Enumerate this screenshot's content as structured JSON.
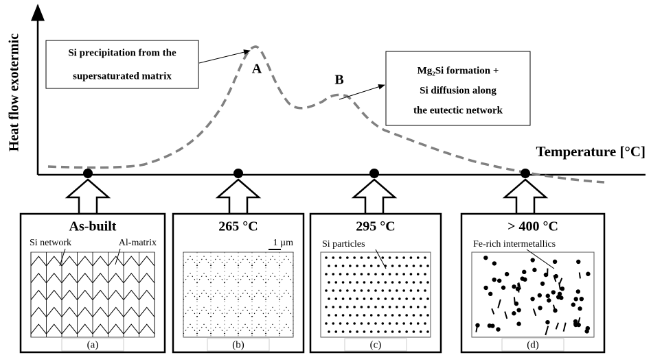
{
  "y_axis_label": "Heat flow exotermic",
  "x_axis_label": "Temperature [°C]",
  "annotation_a": {
    "lines": [
      "Si precipitation from the",
      "supersaturated matrix"
    ],
    "peak": "A"
  },
  "annotation_b": {
    "lines": [
      "Mg₂Si formation +",
      "Si diffusion along",
      "the eutectic network"
    ],
    "peak": "B"
  },
  "panels": [
    {
      "title": "As-built",
      "labels": [
        "Si network",
        "Al-matrix"
      ],
      "caption": "(a)"
    },
    {
      "title": "265 °C",
      "labels": [
        "1 µm"
      ],
      "caption": "(b)"
    },
    {
      "title": "295 °C",
      "labels": [
        "Si particles"
      ],
      "caption": "(c)"
    },
    {
      "title": "> 400 °C",
      "labels": [
        "Fe-rich intermetallics"
      ],
      "caption": "(d)"
    }
  ]
}
